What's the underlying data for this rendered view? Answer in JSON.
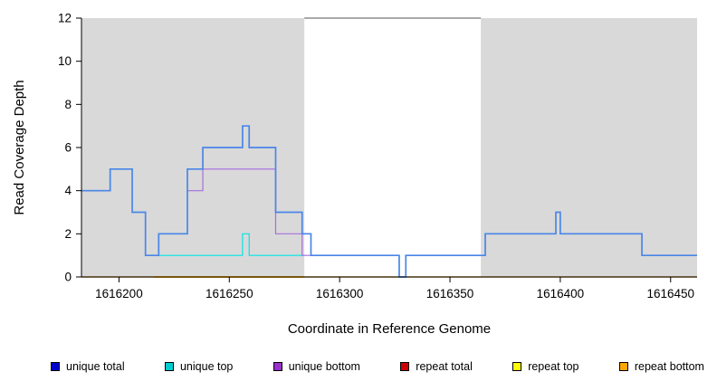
{
  "chart_data": {
    "type": "line",
    "title": "",
    "xlabel": "Coordinate in Reference Genome",
    "ylabel": "Read Coverage Depth",
    "xlim": [
      1616183,
      1616462
    ],
    "ylim": [
      0,
      12
    ],
    "xticks": [
      1616200,
      1616250,
      1616300,
      1616350,
      1616400,
      1616450
    ],
    "yticks": [
      0,
      2,
      4,
      6,
      8,
      10,
      12
    ],
    "grid": false,
    "plot_bg": "#ffffff",
    "shaded_regions": [
      {
        "x0": 1616183,
        "x1": 1616284,
        "color": "#d9d9d9"
      },
      {
        "x0": 1616364,
        "x1": 1616462,
        "color": "#d9d9d9"
      }
    ],
    "top_segment": {
      "x0": 1616284,
      "x1": 1616364,
      "y": 12,
      "color": "#555555"
    },
    "series": [
      {
        "name": "repeat top",
        "color": "#ffff00",
        "width": 1.2,
        "points": [
          [
            1616183,
            0
          ],
          [
            1616462,
            0
          ]
        ]
      },
      {
        "name": "repeat total",
        "color": "#a22a2a",
        "width": 1.2,
        "points": [
          [
            1616183,
            0
          ],
          [
            1616462,
            0
          ]
        ]
      },
      {
        "name": "repeat bottom",
        "color": "#ffa500",
        "width": 1.8,
        "points": [
          [
            1616216,
            0
          ],
          [
            1616284,
            0
          ]
        ]
      },
      {
        "name": "unique top",
        "color": "#00e5e5",
        "width": 1.2,
        "points": [
          [
            1616215,
            1
          ],
          [
            1616256,
            2
          ],
          [
            1616259,
            1
          ],
          [
            1616284,
            1
          ]
        ]
      },
      {
        "name": "unique bottom",
        "color": "#a56ede",
        "width": 1.2,
        "points": [
          [
            1616231,
            4
          ],
          [
            1616238,
            5
          ],
          [
            1616271,
            2
          ],
          [
            1616283,
            1
          ],
          [
            1616287,
            1
          ]
        ]
      },
      {
        "name": "unique total",
        "color": "#4a86e8",
        "width": 1.7,
        "points": [
          [
            1616183,
            4
          ],
          [
            1616196,
            5
          ],
          [
            1616206,
            3
          ],
          [
            1616212,
            1
          ],
          [
            1616218,
            2
          ],
          [
            1616231,
            5
          ],
          [
            1616238,
            6
          ],
          [
            1616256,
            7
          ],
          [
            1616259,
            6
          ],
          [
            1616271,
            3
          ],
          [
            1616283,
            2
          ],
          [
            1616287,
            1
          ],
          [
            1616327,
            0
          ],
          [
            1616330,
            1
          ],
          [
            1616366,
            2
          ],
          [
            1616398,
            3
          ],
          [
            1616400,
            2
          ],
          [
            1616437,
            1
          ],
          [
            1616462,
            1
          ]
        ]
      }
    ],
    "legend": {
      "position": "bottom",
      "items": [
        {
          "label": "unique total",
          "color": "#0000cd"
        },
        {
          "label": "unique top",
          "color": "#00ced1"
        },
        {
          "label": "unique bottom",
          "color": "#9932cc"
        },
        {
          "label": "repeat total",
          "color": "#cd0000"
        },
        {
          "label": "repeat top",
          "color": "#ffff00"
        },
        {
          "label": "repeat bottom",
          "color": "#ffa500"
        }
      ]
    }
  }
}
